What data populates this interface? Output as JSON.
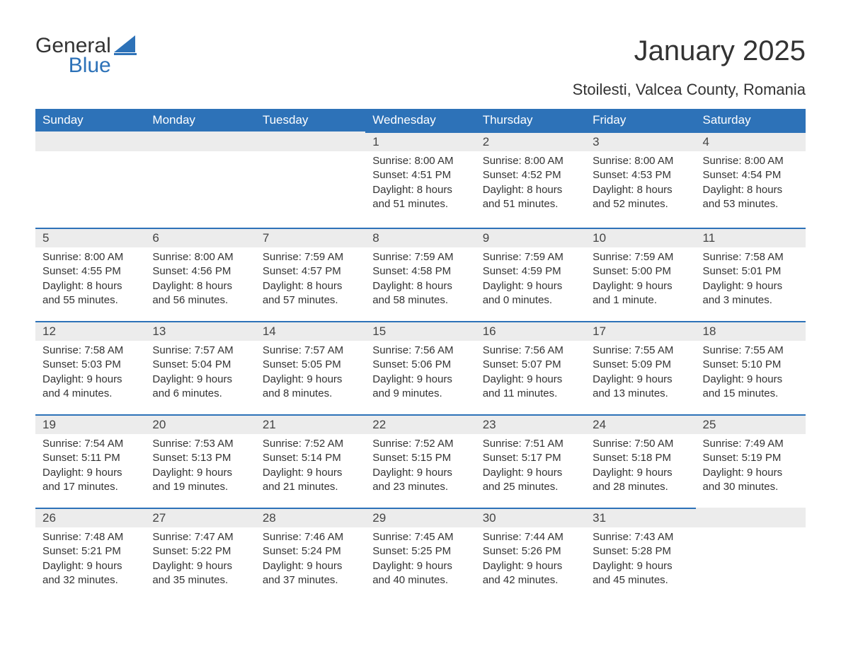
{
  "colors": {
    "brand_blue": "#2d72b8",
    "header_bg": "#2d72b8",
    "header_text": "#ffffff",
    "daynum_bg": "#ececec",
    "daynum_border": "#2d72b8",
    "body_text": "#333333",
    "page_bg": "#ffffff"
  },
  "typography": {
    "title_fontsize": 40,
    "subtitle_fontsize": 22,
    "dayheader_fontsize": 17,
    "daynum_fontsize": 17,
    "daytext_fontsize": 15,
    "logo_fontsize": 30
  },
  "logo": {
    "line1": "General",
    "line2": "Blue",
    "shape_color": "#2d72b8"
  },
  "title": "January 2025",
  "subtitle": "Stoilesti, Valcea County, Romania",
  "calendar": {
    "type": "table",
    "columns": [
      "Sunday",
      "Monday",
      "Tuesday",
      "Wednesday",
      "Thursday",
      "Friday",
      "Saturday"
    ],
    "weeks": [
      [
        null,
        null,
        null,
        {
          "day": "1",
          "sunrise": "Sunrise: 8:00 AM",
          "sunset": "Sunset: 4:51 PM",
          "daylight1": "Daylight: 8 hours",
          "daylight2": "and 51 minutes."
        },
        {
          "day": "2",
          "sunrise": "Sunrise: 8:00 AM",
          "sunset": "Sunset: 4:52 PM",
          "daylight1": "Daylight: 8 hours",
          "daylight2": "and 51 minutes."
        },
        {
          "day": "3",
          "sunrise": "Sunrise: 8:00 AM",
          "sunset": "Sunset: 4:53 PM",
          "daylight1": "Daylight: 8 hours",
          "daylight2": "and 52 minutes."
        },
        {
          "day": "4",
          "sunrise": "Sunrise: 8:00 AM",
          "sunset": "Sunset: 4:54 PM",
          "daylight1": "Daylight: 8 hours",
          "daylight2": "and 53 minutes."
        }
      ],
      [
        {
          "day": "5",
          "sunrise": "Sunrise: 8:00 AM",
          "sunset": "Sunset: 4:55 PM",
          "daylight1": "Daylight: 8 hours",
          "daylight2": "and 55 minutes."
        },
        {
          "day": "6",
          "sunrise": "Sunrise: 8:00 AM",
          "sunset": "Sunset: 4:56 PM",
          "daylight1": "Daylight: 8 hours",
          "daylight2": "and 56 minutes."
        },
        {
          "day": "7",
          "sunrise": "Sunrise: 7:59 AM",
          "sunset": "Sunset: 4:57 PM",
          "daylight1": "Daylight: 8 hours",
          "daylight2": "and 57 minutes."
        },
        {
          "day": "8",
          "sunrise": "Sunrise: 7:59 AM",
          "sunset": "Sunset: 4:58 PM",
          "daylight1": "Daylight: 8 hours",
          "daylight2": "and 58 minutes."
        },
        {
          "day": "9",
          "sunrise": "Sunrise: 7:59 AM",
          "sunset": "Sunset: 4:59 PM",
          "daylight1": "Daylight: 9 hours",
          "daylight2": "and 0 minutes."
        },
        {
          "day": "10",
          "sunrise": "Sunrise: 7:59 AM",
          "sunset": "Sunset: 5:00 PM",
          "daylight1": "Daylight: 9 hours",
          "daylight2": "and 1 minute."
        },
        {
          "day": "11",
          "sunrise": "Sunrise: 7:58 AM",
          "sunset": "Sunset: 5:01 PM",
          "daylight1": "Daylight: 9 hours",
          "daylight2": "and 3 minutes."
        }
      ],
      [
        {
          "day": "12",
          "sunrise": "Sunrise: 7:58 AM",
          "sunset": "Sunset: 5:03 PM",
          "daylight1": "Daylight: 9 hours",
          "daylight2": "and 4 minutes."
        },
        {
          "day": "13",
          "sunrise": "Sunrise: 7:57 AM",
          "sunset": "Sunset: 5:04 PM",
          "daylight1": "Daylight: 9 hours",
          "daylight2": "and 6 minutes."
        },
        {
          "day": "14",
          "sunrise": "Sunrise: 7:57 AM",
          "sunset": "Sunset: 5:05 PM",
          "daylight1": "Daylight: 9 hours",
          "daylight2": "and 8 minutes."
        },
        {
          "day": "15",
          "sunrise": "Sunrise: 7:56 AM",
          "sunset": "Sunset: 5:06 PM",
          "daylight1": "Daylight: 9 hours",
          "daylight2": "and 9 minutes."
        },
        {
          "day": "16",
          "sunrise": "Sunrise: 7:56 AM",
          "sunset": "Sunset: 5:07 PM",
          "daylight1": "Daylight: 9 hours",
          "daylight2": "and 11 minutes."
        },
        {
          "day": "17",
          "sunrise": "Sunrise: 7:55 AM",
          "sunset": "Sunset: 5:09 PM",
          "daylight1": "Daylight: 9 hours",
          "daylight2": "and 13 minutes."
        },
        {
          "day": "18",
          "sunrise": "Sunrise: 7:55 AM",
          "sunset": "Sunset: 5:10 PM",
          "daylight1": "Daylight: 9 hours",
          "daylight2": "and 15 minutes."
        }
      ],
      [
        {
          "day": "19",
          "sunrise": "Sunrise: 7:54 AM",
          "sunset": "Sunset: 5:11 PM",
          "daylight1": "Daylight: 9 hours",
          "daylight2": "and 17 minutes."
        },
        {
          "day": "20",
          "sunrise": "Sunrise: 7:53 AM",
          "sunset": "Sunset: 5:13 PM",
          "daylight1": "Daylight: 9 hours",
          "daylight2": "and 19 minutes."
        },
        {
          "day": "21",
          "sunrise": "Sunrise: 7:52 AM",
          "sunset": "Sunset: 5:14 PM",
          "daylight1": "Daylight: 9 hours",
          "daylight2": "and 21 minutes."
        },
        {
          "day": "22",
          "sunrise": "Sunrise: 7:52 AM",
          "sunset": "Sunset: 5:15 PM",
          "daylight1": "Daylight: 9 hours",
          "daylight2": "and 23 minutes."
        },
        {
          "day": "23",
          "sunrise": "Sunrise: 7:51 AM",
          "sunset": "Sunset: 5:17 PM",
          "daylight1": "Daylight: 9 hours",
          "daylight2": "and 25 minutes."
        },
        {
          "day": "24",
          "sunrise": "Sunrise: 7:50 AM",
          "sunset": "Sunset: 5:18 PM",
          "daylight1": "Daylight: 9 hours",
          "daylight2": "and 28 minutes."
        },
        {
          "day": "25",
          "sunrise": "Sunrise: 7:49 AM",
          "sunset": "Sunset: 5:19 PM",
          "daylight1": "Daylight: 9 hours",
          "daylight2": "and 30 minutes."
        }
      ],
      [
        {
          "day": "26",
          "sunrise": "Sunrise: 7:48 AM",
          "sunset": "Sunset: 5:21 PM",
          "daylight1": "Daylight: 9 hours",
          "daylight2": "and 32 minutes."
        },
        {
          "day": "27",
          "sunrise": "Sunrise: 7:47 AM",
          "sunset": "Sunset: 5:22 PM",
          "daylight1": "Daylight: 9 hours",
          "daylight2": "and 35 minutes."
        },
        {
          "day": "28",
          "sunrise": "Sunrise: 7:46 AM",
          "sunset": "Sunset: 5:24 PM",
          "daylight1": "Daylight: 9 hours",
          "daylight2": "and 37 minutes."
        },
        {
          "day": "29",
          "sunrise": "Sunrise: 7:45 AM",
          "sunset": "Sunset: 5:25 PM",
          "daylight1": "Daylight: 9 hours",
          "daylight2": "and 40 minutes."
        },
        {
          "day": "30",
          "sunrise": "Sunrise: 7:44 AM",
          "sunset": "Sunset: 5:26 PM",
          "daylight1": "Daylight: 9 hours",
          "daylight2": "and 42 minutes."
        },
        {
          "day": "31",
          "sunrise": "Sunrise: 7:43 AM",
          "sunset": "Sunset: 5:28 PM",
          "daylight1": "Daylight: 9 hours",
          "daylight2": "and 45 minutes."
        },
        null
      ]
    ]
  }
}
